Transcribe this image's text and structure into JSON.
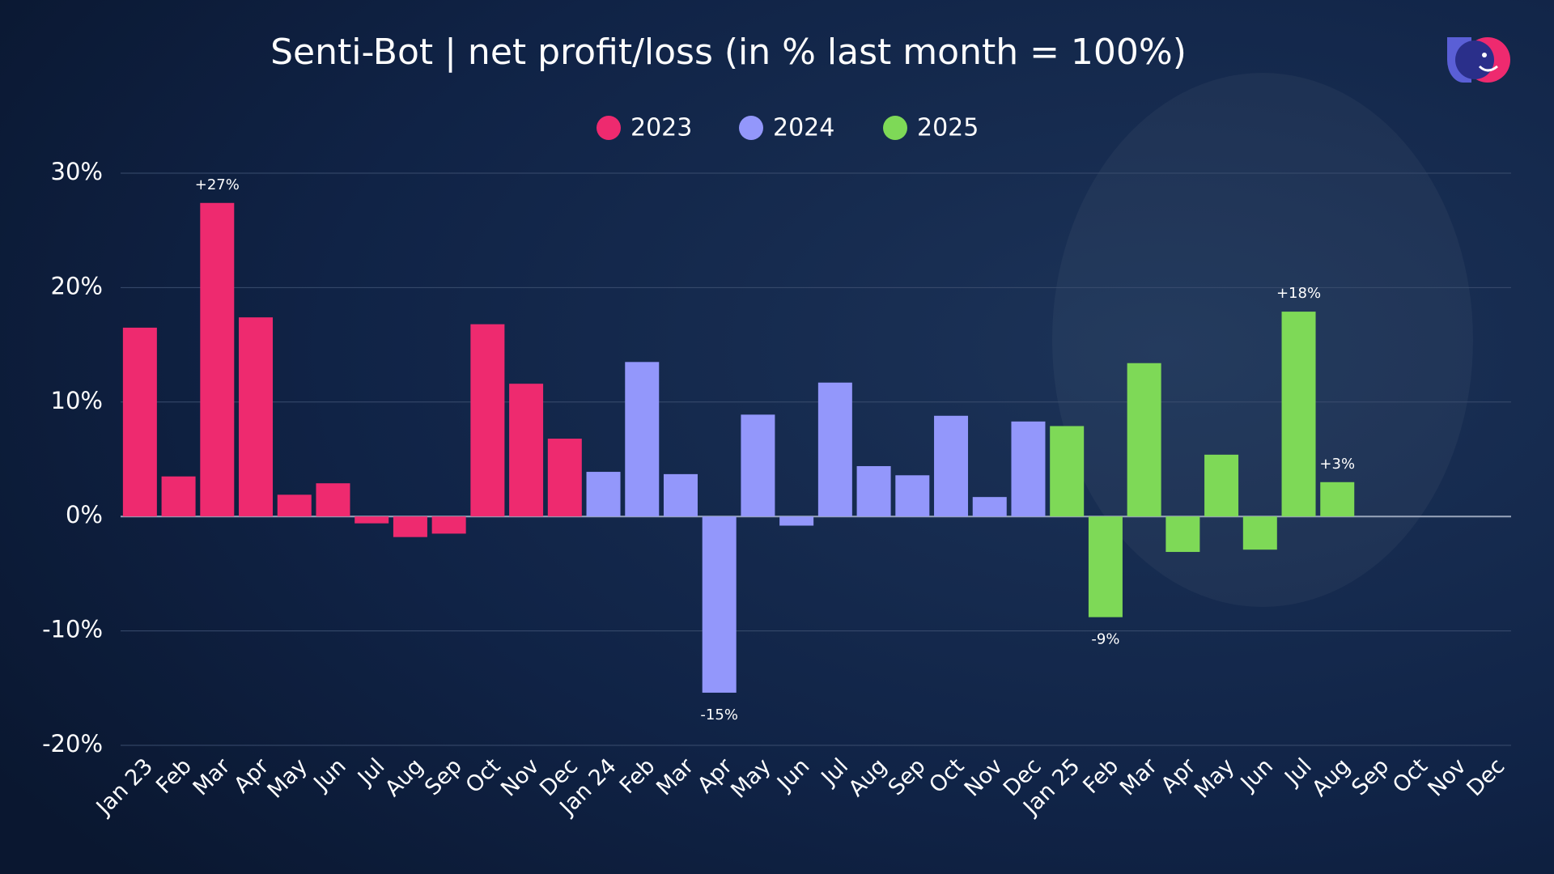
{
  "chart_data": {
    "type": "bar",
    "title": "Senti-Bot | net profit/loss (in % last month = 100%)",
    "categories": [
      "Jan 23",
      "Feb",
      "Mar",
      "Apr",
      "May",
      "Jun",
      "Jul",
      "Aug",
      "Sep",
      "Oct",
      "Nov",
      "Dec",
      "Jan 24",
      "Feb",
      "Mar",
      "Apr",
      "May",
      "Jun",
      "Jul",
      "Aug",
      "Sep",
      "Oct",
      "Nov",
      "Dec",
      "Jan 25",
      "Feb",
      "Mar",
      "Apr",
      "May",
      "Jun",
      "Jul",
      "Aug",
      "Sep",
      "Oct",
      "Nov",
      "Dec"
    ],
    "series": [
      {
        "name": "2023",
        "color": "#ee2a6f",
        "values": [
          16.5,
          3.5,
          27.4,
          17.4,
          1.9,
          2.9,
          -0.6,
          -1.8,
          -1.5,
          16.8,
          11.6,
          6.8,
          null,
          null,
          null,
          null,
          null,
          null,
          null,
          null,
          null,
          null,
          null,
          null,
          null,
          null,
          null,
          null,
          null,
          null,
          null,
          null,
          null,
          null,
          null,
          null
        ],
        "value_labels": [
          null,
          null,
          "+27%",
          null,
          null,
          null,
          null,
          null,
          null,
          null,
          null,
          null,
          null,
          null,
          null,
          null,
          null,
          null,
          null,
          null,
          null,
          null,
          null,
          null,
          null,
          null,
          null,
          null,
          null,
          null,
          null,
          null,
          null,
          null,
          null,
          null
        ]
      },
      {
        "name": "2024",
        "color": "#9397fb",
        "values": [
          null,
          null,
          null,
          null,
          null,
          null,
          null,
          null,
          null,
          null,
          null,
          null,
          3.9,
          13.5,
          3.7,
          -15.4,
          8.9,
          -0.8,
          11.7,
          4.4,
          3.6,
          8.8,
          1.7,
          8.3,
          null,
          null,
          null,
          null,
          null,
          null,
          null,
          null,
          null,
          null,
          null,
          null
        ],
        "value_labels": [
          null,
          null,
          null,
          null,
          null,
          null,
          null,
          null,
          null,
          null,
          null,
          null,
          null,
          null,
          null,
          "-15%",
          null,
          null,
          null,
          null,
          null,
          null,
          null,
          null,
          null,
          null,
          null,
          null,
          null,
          null,
          null,
          null,
          null,
          null,
          null,
          null
        ]
      },
      {
        "name": "2025",
        "color": "#7ed957",
        "values": [
          null,
          null,
          null,
          null,
          null,
          null,
          null,
          null,
          null,
          null,
          null,
          null,
          null,
          null,
          null,
          null,
          null,
          null,
          null,
          null,
          null,
          null,
          null,
          null,
          7.9,
          -8.8,
          13.4,
          -3.1,
          5.4,
          -2.9,
          17.9,
          3.0,
          null,
          null,
          null,
          null
        ],
        "value_labels": [
          null,
          null,
          null,
          null,
          null,
          null,
          null,
          null,
          null,
          null,
          null,
          null,
          null,
          null,
          null,
          null,
          null,
          null,
          null,
          null,
          null,
          null,
          null,
          null,
          null,
          "-9%",
          null,
          null,
          null,
          null,
          "+18%",
          "+3%",
          null,
          null,
          null,
          null
        ]
      }
    ],
    "ylim": [
      -20,
      30
    ],
    "yticks": [
      {
        "value": -20,
        "label": "-20%"
      },
      {
        "value": -10,
        "label": "-10%"
      },
      {
        "value": 0,
        "label": "0%"
      },
      {
        "value": 10,
        "label": "10%"
      },
      {
        "value": 20,
        "label": "20%"
      },
      {
        "value": 30,
        "label": "30%"
      }
    ],
    "grid": true,
    "legend": "top"
  }
}
